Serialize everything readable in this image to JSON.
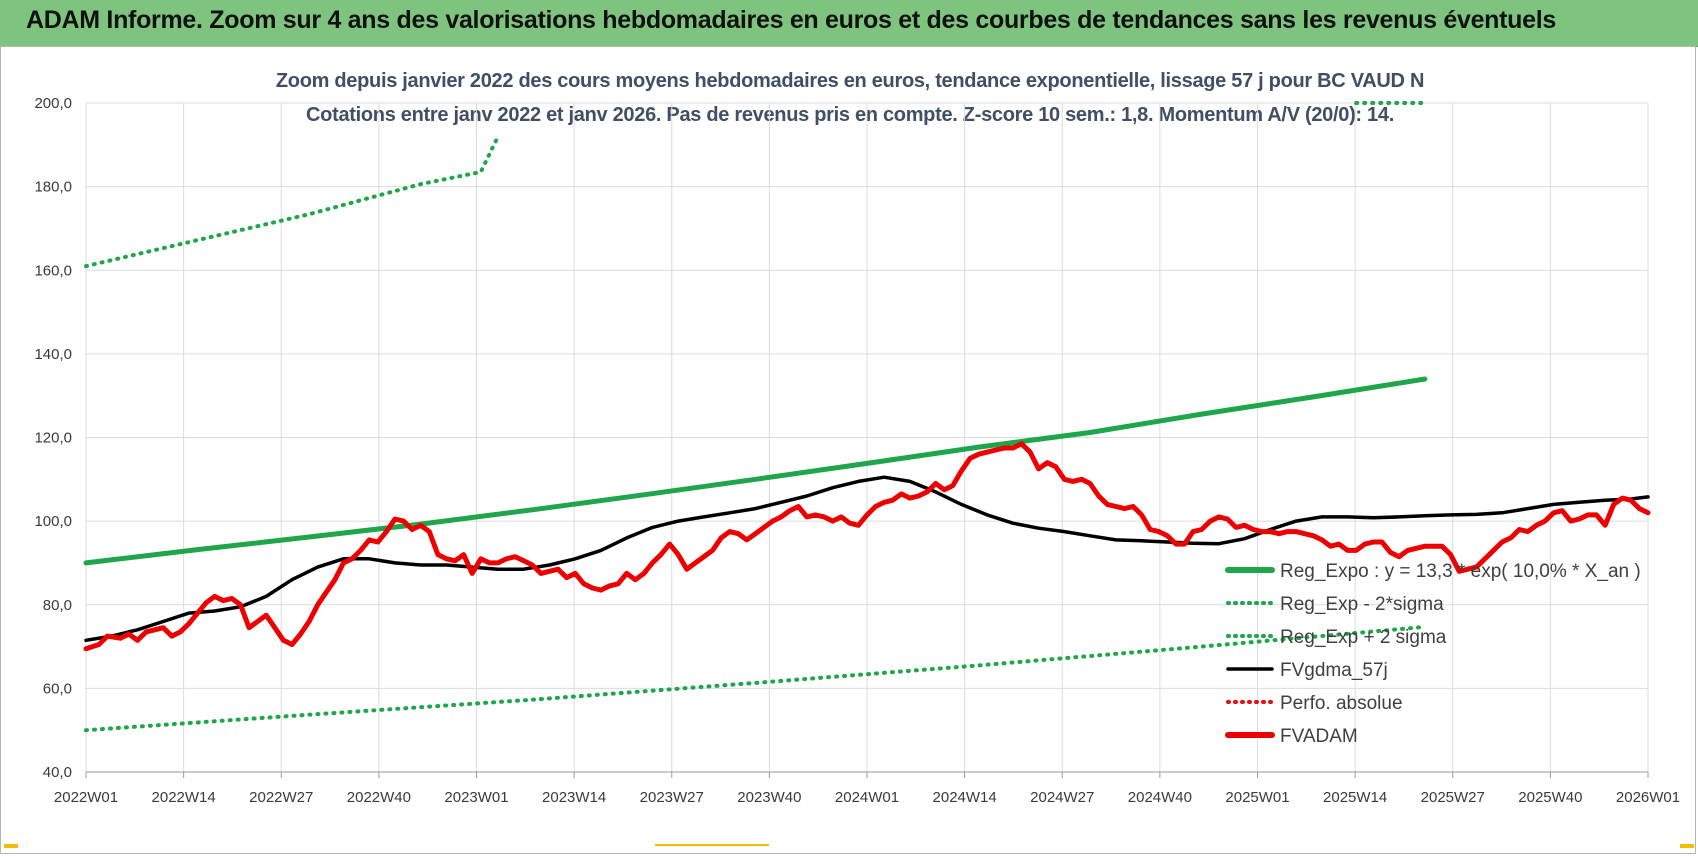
{
  "header": {
    "title": "ADAM Informe. Zoom sur 4 ans des valorisations hebdomadaires en euros et des courbes de tendances sans les revenus éventuels"
  },
  "chart_data": {
    "type": "line",
    "title": "Zoom depuis janvier 2022 des cours moyens hebdomadaires en euros, tendance exponentielle, lissage 57 j pour BC VAUD N",
    "subtitle": "Cotations entre janv 2022 et janv 2026. Pas de revenus pris en compte. Z-score 10 sem.: 1,8. Momentum A/V (20/0): 14.",
    "ylim": [
      40,
      200
    ],
    "yticks": [
      "40,0",
      "60,0",
      "80,0",
      "100,0",
      "120,0",
      "140,0",
      "160,0",
      "180,0",
      "200,0"
    ],
    "ytick_values": [
      40,
      60,
      80,
      100,
      120,
      140,
      160,
      180,
      200
    ],
    "xticks": [
      "2022W01",
      "2022W14",
      "2022W27",
      "2022W40",
      "2023W01",
      "2023W14",
      "2023W27",
      "2023W40",
      "2024W01",
      "2024W14",
      "2024W27",
      "2024W40",
      "2025W01",
      "2025W14",
      "2025W27",
      "2025W40",
      "2026W01"
    ],
    "weeks_total": 208,
    "grid": true,
    "legend_position": "right",
    "series": [
      {
        "name": "Reg_Expo : y = 13,3 * exp( 10,0% *  X_an )",
        "color": "#1fa64a",
        "style": "solid-thick",
        "points": [
          [
            0,
            90
          ],
          [
            26,
            93.2
          ],
          [
            52,
            96.2
          ],
          [
            78,
            99.3
          ],
          [
            104,
            102.7
          ],
          [
            130,
            106.3
          ],
          [
            156,
            110
          ],
          [
            182,
            113.8
          ],
          [
            208,
            117.7
          ],
          [
            234,
            121.2
          ],
          [
            260,
            125.6
          ],
          [
            286,
            129.7
          ],
          [
            312,
            134
          ]
        ]
      },
      {
        "name": "Reg_Exp - 2*sigma",
        "color": "#1fa64a",
        "style": "dotted",
        "points": [
          [
            0,
            50
          ],
          [
            52,
            53.7
          ],
          [
            104,
            57.3
          ],
          [
            156,
            61.3
          ],
          [
            208,
            65.5
          ],
          [
            260,
            70
          ],
          [
            312,
            74.7
          ]
        ]
      },
      {
        "name": "Reg_Exp + 2 sigma",
        "color": "#1fa64a",
        "style": "dotted",
        "points": [
          [
            0,
            161
          ],
          [
            26,
            167.2
          ],
          [
            52,
            173.4
          ],
          [
            78,
            180.6
          ],
          [
            92,
            183.5
          ],
          [
            96,
            192
          ]
        ],
        "points_right": [
          [
            296,
            200
          ],
          [
            312,
            200
          ]
        ]
      },
      {
        "name": "FVgdma_57j",
        "color": "#000000",
        "style": "solid",
        "points": [
          [
            0,
            71.5
          ],
          [
            6,
            72.5
          ],
          [
            12,
            74
          ],
          [
            18,
            76
          ],
          [
            24,
            78
          ],
          [
            30,
            78.5
          ],
          [
            36,
            79.5
          ],
          [
            42,
            82
          ],
          [
            48,
            86
          ],
          [
            54,
            89
          ],
          [
            60,
            91
          ],
          [
            66,
            91
          ],
          [
            72,
            90
          ],
          [
            78,
            89.5
          ],
          [
            84,
            89.5
          ],
          [
            90,
            89
          ],
          [
            96,
            88.5
          ],
          [
            102,
            88.5
          ],
          [
            108,
            89.5
          ],
          [
            114,
            91
          ],
          [
            120,
            93
          ],
          [
            126,
            96
          ],
          [
            132,
            98.5
          ],
          [
            138,
            100
          ],
          [
            144,
            101
          ],
          [
            150,
            102
          ],
          [
            156,
            103
          ],
          [
            162,
            104.5
          ],
          [
            168,
            106
          ],
          [
            174,
            108
          ],
          [
            180,
            109.5
          ],
          [
            186,
            110.5
          ],
          [
            192,
            109.5
          ],
          [
            198,
            107
          ],
          [
            204,
            104
          ],
          [
            210,
            101.5
          ],
          [
            216,
            99.5
          ],
          [
            222,
            98.3
          ],
          [
            228,
            97.5
          ],
          [
            234,
            96.5
          ],
          [
            240,
            95.5
          ],
          [
            246,
            95.3
          ],
          [
            252,
            95
          ],
          [
            258,
            94.7
          ],
          [
            264,
            94.6
          ],
          [
            270,
            95.8
          ],
          [
            276,
            98
          ],
          [
            282,
            100
          ],
          [
            288,
            101
          ],
          [
            294,
            101
          ],
          [
            300,
            100.8
          ],
          [
            306,
            101
          ],
          [
            312,
            101.3
          ],
          [
            318,
            101.5
          ],
          [
            324,
            101.6
          ],
          [
            330,
            102
          ],
          [
            336,
            103
          ],
          [
            342,
            104
          ],
          [
            348,
            104.5
          ],
          [
            354,
            105
          ],
          [
            360,
            105.3
          ],
          [
            364,
            105.8
          ]
        ]
      },
      {
        "name": "Perfo. absolue",
        "color": "#e31212",
        "style": "dotted",
        "points": []
      },
      {
        "name": "FVADAM",
        "color": "#ee0000",
        "style": "solid-thick",
        "points": [
          [
            0,
            69.5
          ],
          [
            3,
            70.5
          ],
          [
            5,
            72.5
          ],
          [
            8,
            72
          ],
          [
            10,
            73
          ],
          [
            12,
            71.5
          ],
          [
            14,
            73.5
          ],
          [
            16,
            74
          ],
          [
            18,
            74.5
          ],
          [
            20,
            72.5
          ],
          [
            22,
            73.5
          ],
          [
            24,
            75.5
          ],
          [
            26,
            78
          ],
          [
            28,
            80.5
          ],
          [
            30,
            82
          ],
          [
            32,
            81
          ],
          [
            34,
            81.5
          ],
          [
            36,
            80
          ],
          [
            38,
            74.5
          ],
          [
            40,
            76
          ],
          [
            42,
            77.5
          ],
          [
            44,
            74.5
          ],
          [
            46,
            71.5
          ],
          [
            48,
            70.5
          ],
          [
            50,
            73
          ],
          [
            52,
            76
          ],
          [
            54,
            80
          ],
          [
            56,
            83
          ],
          [
            58,
            86
          ],
          [
            60,
            90
          ],
          [
            62,
            91
          ],
          [
            64,
            93
          ],
          [
            66,
            95.5
          ],
          [
            68,
            95
          ],
          [
            70,
            97.5
          ],
          [
            72,
            100.5
          ],
          [
            74,
            100
          ],
          [
            76,
            98
          ],
          [
            78,
            99
          ],
          [
            80,
            97.5
          ],
          [
            82,
            92
          ],
          [
            84,
            91
          ],
          [
            86,
            90.5
          ],
          [
            88,
            92
          ],
          [
            90,
            87.5
          ],
          [
            92,
            91
          ],
          [
            94,
            90
          ],
          [
            96,
            90
          ],
          [
            98,
            91
          ],
          [
            100,
            91.5
          ],
          [
            102,
            90.5
          ],
          [
            104,
            89.5
          ],
          [
            106,
            87.5
          ],
          [
            108,
            88
          ],
          [
            110,
            88.5
          ],
          [
            112,
            86.5
          ],
          [
            114,
            87.5
          ],
          [
            116,
            85
          ],
          [
            118,
            84
          ],
          [
            120,
            83.5
          ],
          [
            122,
            84.5
          ],
          [
            124,
            85
          ],
          [
            126,
            87.5
          ],
          [
            128,
            86
          ],
          [
            130,
            87.5
          ],
          [
            132,
            90
          ],
          [
            134,
            92
          ],
          [
            136,
            94.5
          ],
          [
            138,
            92
          ],
          [
            140,
            88.5
          ],
          [
            142,
            90
          ],
          [
            144,
            91.5
          ],
          [
            146,
            93
          ],
          [
            148,
            96
          ],
          [
            150,
            97.5
          ],
          [
            152,
            97
          ],
          [
            154,
            95.5
          ],
          [
            156,
            97
          ],
          [
            158,
            98.5
          ],
          [
            160,
            100
          ],
          [
            162,
            101
          ],
          [
            164,
            102.5
          ],
          [
            166,
            103.5
          ],
          [
            168,
            101
          ],
          [
            170,
            101.5
          ],
          [
            172,
            101
          ],
          [
            174,
            100
          ],
          [
            176,
            101
          ],
          [
            178,
            99.5
          ],
          [
            180,
            99
          ],
          [
            182,
            101.5
          ],
          [
            184,
            103.5
          ],
          [
            186,
            104.5
          ],
          [
            188,
            105
          ],
          [
            190,
            106.5
          ],
          [
            192,
            105.5
          ],
          [
            194,
            106
          ],
          [
            196,
            107
          ],
          [
            198,
            109
          ],
          [
            200,
            107.5
          ],
          [
            202,
            108.5
          ],
          [
            204,
            112
          ],
          [
            206,
            115
          ],
          [
            208,
            116
          ],
          [
            210,
            116.5
          ],
          [
            212,
            117
          ],
          [
            214,
            117.5
          ],
          [
            216,
            117.5
          ],
          [
            218,
            118.5
          ],
          [
            220,
            116.5
          ],
          [
            222,
            112.5
          ],
          [
            224,
            114
          ],
          [
            226,
            113
          ],
          [
            228,
            110
          ],
          [
            230,
            109.5
          ],
          [
            232,
            110
          ],
          [
            234,
            109
          ],
          [
            236,
            106
          ],
          [
            238,
            104
          ],
          [
            240,
            103.5
          ],
          [
            242,
            103
          ],
          [
            244,
            103.5
          ],
          [
            246,
            101.5
          ],
          [
            248,
            98
          ],
          [
            250,
            97.5
          ],
          [
            252,
            96.5
          ],
          [
            254,
            94.5
          ],
          [
            256,
            94.5
          ],
          [
            258,
            97.5
          ],
          [
            260,
            98
          ],
          [
            262,
            100
          ],
          [
            264,
            101
          ],
          [
            266,
            100.5
          ],
          [
            268,
            98.5
          ],
          [
            270,
            99
          ],
          [
            272,
            98
          ],
          [
            274,
            97.5
          ],
          [
            276,
            97.5
          ],
          [
            278,
            97
          ],
          [
            280,
            97.5
          ],
          [
            282,
            97.5
          ],
          [
            284,
            97
          ],
          [
            286,
            96.5
          ],
          [
            288,
            95.5
          ],
          [
            290,
            94
          ],
          [
            292,
            94.5
          ],
          [
            294,
            93
          ],
          [
            296,
            93
          ],
          [
            298,
            94.5
          ],
          [
            300,
            95
          ],
          [
            302,
            95
          ],
          [
            304,
            92.5
          ],
          [
            306,
            91.5
          ],
          [
            308,
            93
          ],
          [
            310,
            93.5
          ],
          [
            312,
            94
          ],
          [
            314,
            94
          ],
          [
            316,
            94
          ],
          [
            318,
            92
          ],
          [
            320,
            88
          ],
          [
            322,
            88.5
          ],
          [
            324,
            89
          ],
          [
            326,
            91
          ],
          [
            328,
            93
          ],
          [
            330,
            95
          ],
          [
            332,
            96
          ],
          [
            334,
            98
          ],
          [
            336,
            97.5
          ],
          [
            338,
            99
          ],
          [
            340,
            100
          ],
          [
            342,
            102
          ],
          [
            344,
            102.5
          ],
          [
            346,
            100
          ],
          [
            348,
            100.5
          ],
          [
            350,
            101.5
          ],
          [
            352,
            101.5
          ],
          [
            354,
            99
          ],
          [
            356,
            104
          ],
          [
            358,
            105.5
          ],
          [
            360,
            105
          ],
          [
            362,
            103
          ],
          [
            364,
            102
          ]
        ]
      }
    ]
  },
  "colors": {
    "banner": "#7ec47e",
    "trend": "#1fa64a",
    "price": "#ee0000",
    "mma": "#000000",
    "grid": "#dcdcdc"
  }
}
